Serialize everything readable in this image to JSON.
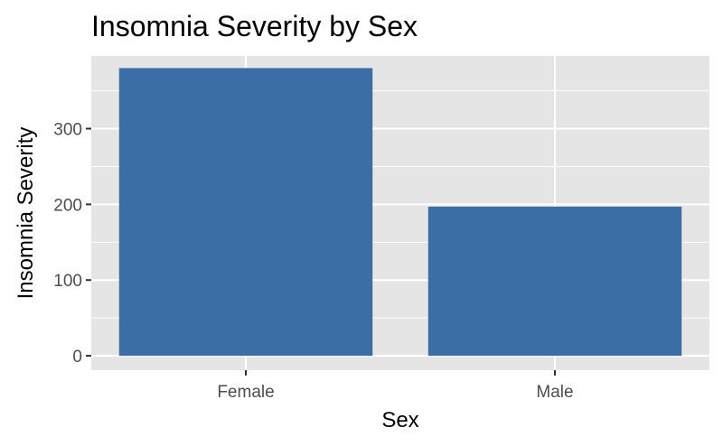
{
  "chart_data": {
    "type": "bar",
    "title": "Insomnia Severity by Sex",
    "xlabel": "Sex",
    "ylabel": "Insomnia Severity",
    "categories": [
      "Female",
      "Male"
    ],
    "values": [
      380,
      197
    ],
    "ylim": [
      -19,
      396
    ],
    "yticks": [
      0,
      100,
      200,
      300
    ],
    "grid": true,
    "legend": "none",
    "colors": {
      "bar": "#3a6ea5",
      "panel": "#e5e5e5",
      "grid": "#ffffff",
      "tick_text": "#4d4d4d",
      "text": "#000000"
    }
  }
}
